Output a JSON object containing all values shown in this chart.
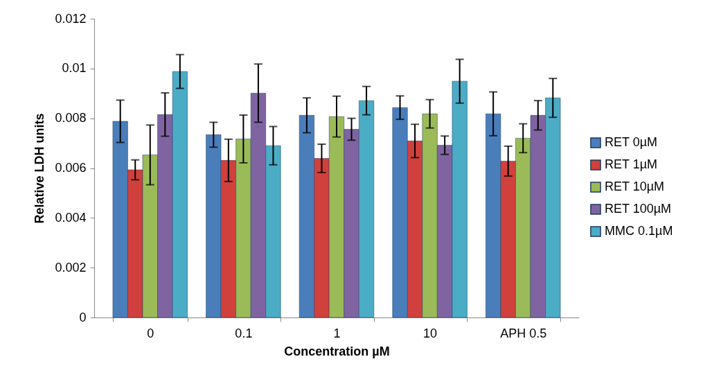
{
  "chart_data": {
    "type": "bar",
    "xlabel": "Concentration µM",
    "ylabel": "Relative LDH units",
    "categories": [
      "0",
      "0.1",
      "1",
      "10",
      "APH 0.5"
    ],
    "series": [
      {
        "name": "RET 0µM",
        "color": "#4a7ebb",
        "values": [
          0.00788,
          0.00734,
          0.00812,
          0.00843,
          0.00818
        ],
        "errors": [
          0.00085,
          0.0005,
          0.0007,
          0.00047,
          0.00088
        ]
      },
      {
        "name": "RET 1µM",
        "color": "#d0403c",
        "values": [
          0.00593,
          0.00631,
          0.00639,
          0.00709,
          0.00628
        ],
        "errors": [
          0.0004,
          0.00085,
          0.00057,
          0.00067,
          0.0006
        ]
      },
      {
        "name": "RET 10µM",
        "color": "#9bbb59",
        "values": [
          0.00653,
          0.00717,
          0.00807,
          0.00818,
          0.0072
        ],
        "errors": [
          0.0012,
          0.00096,
          0.00082,
          0.00057,
          0.00058
        ]
      },
      {
        "name": "RET 100µM",
        "color": "#8064a2",
        "values": [
          0.00815,
          0.00901,
          0.00756,
          0.00692,
          0.00812
        ],
        "errors": [
          0.00087,
          0.00117,
          0.00044,
          0.00037,
          0.00059
        ]
      },
      {
        "name": "MMC 0.1µM",
        "color": "#4bacc6",
        "values": [
          0.00988,
          0.0069,
          0.00871,
          0.00949,
          0.00882
        ],
        "errors": [
          0.00068,
          0.00077,
          0.00057,
          0.00088,
          0.00078
        ]
      }
    ],
    "ylim": [
      0,
      0.012
    ],
    "yticks": [
      0,
      0.002,
      0.004,
      0.006,
      0.008,
      0.01,
      0.012
    ],
    "grid": false,
    "legend": "right"
  }
}
